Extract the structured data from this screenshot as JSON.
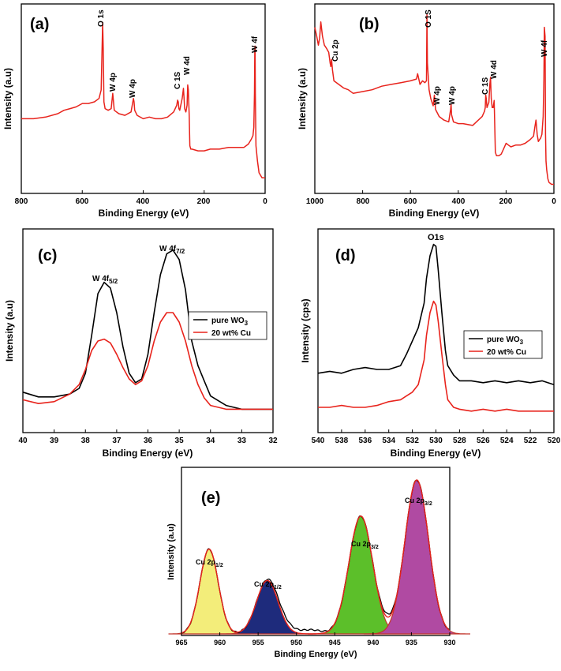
{
  "chart_data": [
    {
      "panel_label": "(a)",
      "type": "line",
      "xlabel": "Binding Energy (eV)",
      "ylabel": "Intensity (a.u)",
      "xlim": [
        800,
        0
      ],
      "ylim": [
        0,
        100
      ],
      "xticks": [
        800,
        600,
        400,
        200,
        0
      ],
      "series": [
        {
          "color": "#e8231c",
          "x": [
            800,
            760,
            720,
            680,
            660,
            640,
            620,
            600,
            580,
            560,
            545,
            538,
            533,
            531,
            529,
            525,
            515,
            505,
            500,
            495,
            480,
            460,
            440,
            432,
            430,
            428,
            420,
            400,
            380,
            360,
            340,
            320,
            300,
            290,
            287,
            285,
            283,
            280,
            272,
            268,
            266,
            264,
            260,
            256,
            254,
            252,
            249,
            247,
            244,
            240,
            220,
            200,
            180,
            150,
            120,
            90,
            70,
            55,
            45,
            40,
            37,
            35,
            34,
            33,
            32,
            30,
            25,
            20,
            10,
            0
          ],
          "y": [
            40,
            40,
            41,
            43,
            45,
            46,
            47,
            49,
            49,
            50,
            52,
            57,
            97,
            80,
            50,
            46,
            45,
            46,
            55,
            45,
            43,
            42,
            44,
            52,
            50,
            45,
            42,
            40,
            41,
            40,
            40,
            41,
            44,
            48,
            51,
            50,
            46,
            45,
            52,
            58,
            52,
            46,
            44,
            48,
            60,
            57,
            42,
            24,
            22,
            22,
            21,
            21,
            22,
            22,
            23,
            23,
            23,
            25,
            28,
            30,
            35,
            55,
            80,
            83,
            55,
            24,
            15,
            8,
            5,
            5
          ]
        }
      ],
      "annotations": [
        "O 1s",
        "W 4p",
        "W 4p",
        "C 1S",
        "W 4d",
        "W 4f"
      ]
    },
    {
      "panel_label": "(b)",
      "type": "line",
      "xlabel": "Binding Energy (eV)",
      "ylabel": "Intensity (a.u)",
      "xlim": [
        1000,
        0
      ],
      "ylim": [
        0,
        100
      ],
      "xticks": [
        1000,
        800,
        600,
        400,
        200,
        0
      ],
      "series": [
        {
          "color": "#e8231c",
          "x": [
            1000,
            992,
            985,
            980,
            975,
            968,
            960,
            950,
            942,
            936,
            933,
            930,
            926,
            920,
            900,
            880,
            860,
            840,
            800,
            760,
            720,
            680,
            640,
            600,
            575,
            570,
            560,
            550,
            540,
            533,
            531,
            529,
            522,
            515,
            505,
            500,
            495,
            480,
            460,
            440,
            432,
            430,
            428,
            420,
            400,
            380,
            340,
            300,
            290,
            287,
            285,
            283,
            280,
            272,
            268,
            265,
            262,
            258,
            254,
            250,
            245,
            240,
            230,
            220,
            210,
            200,
            190,
            180,
            160,
            140,
            120,
            100,
            85,
            80,
            75,
            70,
            65,
            55,
            50,
            45,
            42,
            40,
            37,
            35,
            33,
            30,
            25,
            20,
            10,
            0
          ],
          "y": [
            90,
            85,
            80,
            84,
            93,
            85,
            80,
            78,
            76,
            70,
            68,
            72,
            66,
            60,
            58,
            56,
            55,
            53,
            54,
            55,
            57,
            58,
            59,
            60,
            61,
            64,
            58,
            60,
            59,
            60,
            97,
            70,
            55,
            50,
            46,
            52,
            44,
            40,
            38,
            37,
            44,
            47,
            41,
            37,
            36,
            36,
            35,
            40,
            43,
            45,
            52,
            50,
            45,
            48,
            58,
            62,
            50,
            45,
            45,
            49,
            20,
            18,
            18,
            19,
            22,
            25,
            24,
            23,
            24,
            24,
            25,
            27,
            29,
            34,
            38,
            30,
            26,
            28,
            30,
            40,
            60,
            90,
            85,
            30,
            15,
            10,
            5,
            3,
            2,
            2
          ]
        }
      ],
      "annotations": [
        "Cu 2p",
        "O 1S",
        "W 4p",
        "W 4p",
        "C 1S",
        "W 4d",
        "W 4f"
      ]
    },
    {
      "panel_label": "(c)",
      "type": "line",
      "xlabel": "Binding Energy (eV)",
      "ylabel": "Intensity (a.u)",
      "xlim": [
        40,
        32
      ],
      "ylim": [
        0,
        100
      ],
      "xticks": [
        40,
        39,
        38,
        37,
        36,
        35,
        34,
        33,
        32
      ],
      "legend": {
        "position": "right",
        "entries": [
          "pure WO3",
          "20 wt% Cu"
        ]
      },
      "annotations": [
        "W 4f5/2",
        "W 4f7/2"
      ],
      "series": [
        {
          "name": "pure WO3",
          "color": "#000000",
          "x": [
            40,
            39.5,
            39,
            38.5,
            38.2,
            38,
            37.8,
            37.6,
            37.4,
            37.2,
            37,
            36.8,
            36.6,
            36.4,
            36.2,
            36,
            35.8,
            35.6,
            35.4,
            35.2,
            35,
            34.8,
            34.6,
            34.4,
            34.2,
            34,
            33.5,
            33,
            32.5,
            32
          ],
          "y": [
            18,
            15.5,
            15.5,
            17,
            20,
            28,
            48,
            70,
            76,
            73,
            60,
            42,
            28,
            23,
            25,
            38,
            60,
            80,
            91,
            93,
            88,
            72,
            45,
            32,
            24,
            16,
            11,
            9,
            9,
            9
          ]
        },
        {
          "name": "20 wt% Cu",
          "color": "#e8231c",
          "x": [
            40,
            39.5,
            39,
            38.5,
            38.2,
            38,
            37.8,
            37.6,
            37.4,
            37.2,
            37,
            36.8,
            36.6,
            36.4,
            36.2,
            36,
            35.8,
            35.6,
            35.4,
            35.2,
            35,
            34.8,
            34.6,
            34.4,
            34.2,
            34,
            33.5,
            33,
            32.5,
            32
          ],
          "y": [
            14,
            12,
            13,
            17,
            22,
            30,
            40,
            45,
            46,
            44,
            38,
            31,
            25,
            22,
            24,
            32,
            45,
            55,
            60,
            60,
            55,
            45,
            32,
            22,
            15,
            11,
            9,
            9,
            9,
            9
          ]
        }
      ]
    },
    {
      "panel_label": "(d)",
      "type": "line",
      "xlabel": "Binding Energy (eV)",
      "ylabel": "Intensity (cps)",
      "xlim": [
        540,
        520
      ],
      "ylim": [
        0,
        100
      ],
      "xticks": [
        540,
        538,
        536,
        534,
        532,
        530,
        528,
        526,
        524,
        522,
        520
      ],
      "legend": {
        "position": "right",
        "entries": [
          "pure WO3",
          "20 wt% Cu"
        ]
      },
      "annotations": [
        "O1s"
      ],
      "series": [
        {
          "name": "pure WO3",
          "color": "#000000",
          "x": [
            540,
            539,
            538,
            537,
            536,
            535,
            534,
            533.5,
            533,
            532.5,
            532,
            531.5,
            531,
            530.8,
            530.5,
            530.2,
            530,
            529.8,
            529.5,
            529.2,
            529,
            528.5,
            528,
            527,
            526,
            525,
            524,
            523,
            522,
            521,
            520
          ],
          "y": [
            28,
            29,
            28,
            30,
            31,
            30,
            30,
            31,
            32,
            38,
            45,
            52,
            65,
            78,
            90,
            96,
            95,
            82,
            60,
            40,
            32,
            27,
            24,
            24,
            23,
            24,
            23,
            24,
            23,
            24,
            22
          ]
        },
        {
          "name": "20 wt% Cu",
          "color": "#e8231c",
          "x": [
            540,
            539,
            538,
            537,
            536,
            535,
            534,
            533,
            532.5,
            532,
            531.5,
            531,
            530.8,
            530.5,
            530.2,
            530,
            529.8,
            529.5,
            529.2,
            529,
            528.5,
            528,
            527,
            526,
            525,
            524,
            523,
            522,
            521,
            520
          ],
          "y": [
            10,
            10,
            11,
            10,
            10,
            11,
            13,
            14,
            16,
            18,
            22,
            35,
            48,
            60,
            66,
            64,
            55,
            38,
            22,
            14,
            10,
            9,
            8,
            9,
            8,
            9,
            8,
            8,
            8,
            8
          ]
        }
      ]
    },
    {
      "panel_label": "(e)",
      "type": "area",
      "xlabel": "Binding Energy (eV)",
      "ylabel": "Intensity (a.u)",
      "xlim": [
        965,
        930
      ],
      "ylim": [
        0,
        100
      ],
      "xticks": [
        965,
        960,
        955,
        950,
        945,
        940,
        935,
        930
      ],
      "annotations": [
        "Cu 2p1/2",
        "Cu 2p1/2",
        "Cu 2p3/2",
        "Cu 2p3/2"
      ],
      "peaks": [
        {
          "center": 961.4,
          "height": 54,
          "sigma": 1.2,
          "fill": "#f3ed7a"
        },
        {
          "center": 953.8,
          "height": 34,
          "sigma": 1.4,
          "fill": "#1e2b7c"
        },
        {
          "center": 941.6,
          "height": 75,
          "sigma": 1.55,
          "fill": "#5cbf2a"
        },
        {
          "center": 934.3,
          "height": 98,
          "sigma": 1.55,
          "fill": "#b04aa2"
        }
      ],
      "series": [
        {
          "name": "envelope",
          "color": "#e8231c"
        },
        {
          "name": "raw",
          "color": "#000000"
        }
      ]
    }
  ],
  "labels": {
    "a": {
      "panel": "(a)",
      "xlabel": "Binding Energy (eV)",
      "ylabel": "Intensity (a.u)",
      "ticks": [
        "800",
        "600",
        "400",
        "200",
        "0"
      ],
      "peaks": [
        "O 1s",
        "W 4p",
        "W 4p",
        "C 1S",
        "W 4d",
        "W 4f"
      ]
    },
    "b": {
      "panel": "(b)",
      "xlabel": "Binding Energy (eV)",
      "ylabel": "Intensity (a.u)",
      "ticks": [
        "1000",
        "800",
        "600",
        "400",
        "200",
        "0"
      ],
      "peaks": [
        "Cu 2p",
        "O 1S",
        "W 4p",
        "W 4p",
        "C 1S",
        "W 4d",
        "W 4f"
      ]
    },
    "c": {
      "panel": "(c)",
      "xlabel": "Binding Energy (eV)",
      "ylabel": "Intensity (a.u)",
      "ticks": [
        "40",
        "39",
        "38",
        "37",
        "36",
        "35",
        "34",
        "33",
        "32"
      ],
      "peak1_main": "W 4f",
      "peak1_sub": "5/2",
      "peak2_main": "W 4f",
      "peak2_sub": "7/2",
      "legend1_main": "pure WO",
      "legend1_sub": "3",
      "legend2": "20 wt% Cu"
    },
    "d": {
      "panel": "(d)",
      "xlabel": "Binding Energy (eV)",
      "ylabel": "Intensity (cps)",
      "ticks": [
        "540",
        "538",
        "536",
        "534",
        "532",
        "530",
        "528",
        "526",
        "524",
        "522",
        "520"
      ],
      "peak": "O1s",
      "legend1_main": "pure WO",
      "legend1_sub": "3",
      "legend2": "20 wt% Cu"
    },
    "e": {
      "panel": "(e)",
      "xlabel": "Binding Energy (eV)",
      "ylabel": "Intensity (a.u)",
      "ticks": [
        "965",
        "960",
        "955",
        "950",
        "945",
        "940",
        "935",
        "930"
      ],
      "p1_main": "Cu 2p",
      "p1_sub": "1/2",
      "p2_main": "Cu 2p",
      "p2_sub": "1/2",
      "p3_main": "Cu 2p",
      "p3_sub": "3/2",
      "p4_main": "Cu 2p",
      "p4_sub": "3/2"
    }
  }
}
